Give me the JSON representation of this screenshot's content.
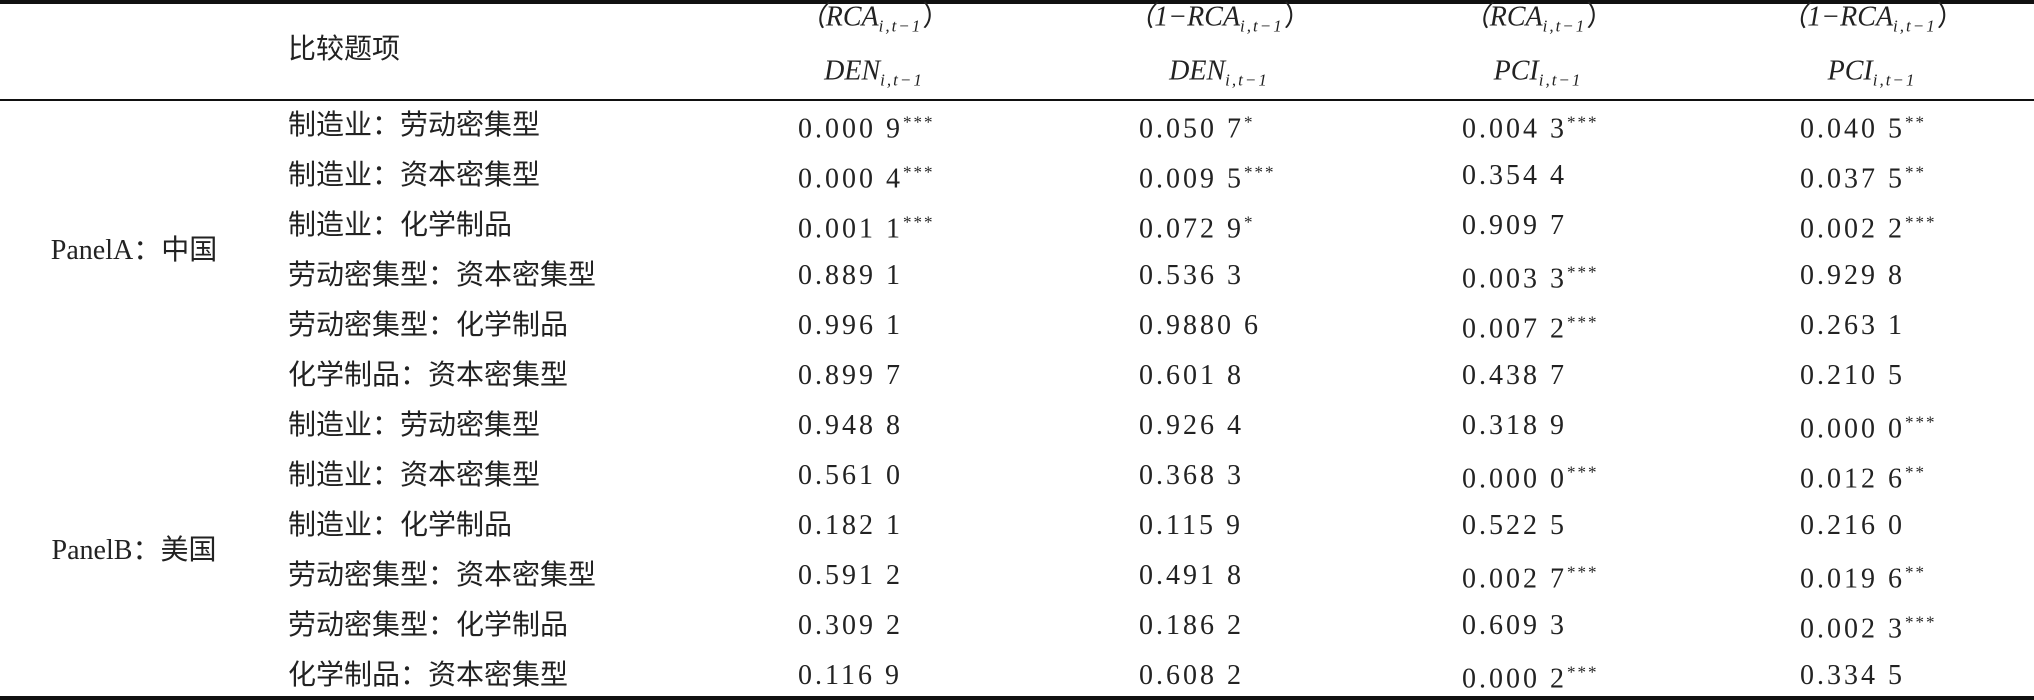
{
  "header": {
    "item": "比较题项",
    "columns": [
      {
        "top": "（RCA",
        "top_sub": "i,t−1",
        "top_close": "）",
        "bottom": "DEN",
        "bottom_sub": "i,t−1"
      },
      {
        "top": "（1−RCA",
        "top_sub": "i,t−1",
        "top_close": "）",
        "bottom": "DEN",
        "bottom_sub": "i,t−1"
      },
      {
        "top": "（RCA",
        "top_sub": "i,t−1",
        "top_close": "）",
        "bottom": "PCI",
        "bottom_sub": "i,t−1"
      },
      {
        "top": "（1−RCA",
        "top_sub": "i,t−1",
        "top_close": "）",
        "bottom": "PCI",
        "bottom_sub": "i,t−1"
      }
    ]
  },
  "panels": [
    {
      "label": "PanelA：中国",
      "rows": [
        {
          "item": "制造业：劳动密集型",
          "cells": [
            {
              "value": "0.000 9",
              "stars": "***"
            },
            {
              "value": "0.050 7",
              "stars": "*"
            },
            {
              "value": "0.004 3",
              "stars": "***"
            },
            {
              "value": "0.040 5",
              "stars": "**"
            }
          ]
        },
        {
          "item": "制造业：资本密集型",
          "cells": [
            {
              "value": "0.000 4",
              "stars": "***"
            },
            {
              "value": "0.009 5",
              "stars": "***"
            },
            {
              "value": "0.354 4"
            },
            {
              "value": "0.037 5",
              "stars": "**"
            }
          ]
        },
        {
          "item": "制造业：化学制品",
          "cells": [
            {
              "value": "0.001 1",
              "stars": "***"
            },
            {
              "value": "0.072 9",
              "stars": "*"
            },
            {
              "value": "0.909 7"
            },
            {
              "value": "0.002 2",
              "stars": "***"
            }
          ]
        },
        {
          "item": "劳动密集型：资本密集型",
          "cells": [
            {
              "value": "0.889 1"
            },
            {
              "value": "0.536 3"
            },
            {
              "value": "0.003 3",
              "stars": "***"
            },
            {
              "value": "0.929 8"
            }
          ]
        },
        {
          "item": "劳动密集型：化学制品",
          "cells": [
            {
              "value": "0.996 1"
            },
            {
              "value": "0.9880 6"
            },
            {
              "value": "0.007 2",
              "stars": "***"
            },
            {
              "value": "0.263 1"
            }
          ]
        },
        {
          "item": "化学制品：资本密集型",
          "cells": [
            {
              "value": "0.899 7"
            },
            {
              "value": "0.601 8"
            },
            {
              "value": "0.438 7"
            },
            {
              "value": "0.210 5"
            }
          ]
        }
      ]
    },
    {
      "label": "PanelB：美国",
      "rows": [
        {
          "item": "制造业：劳动密集型",
          "cells": [
            {
              "value": "0.948 8"
            },
            {
              "value": "0.926 4"
            },
            {
              "value": "0.318 9"
            },
            {
              "value": "0.000 0",
              "stars": "***"
            }
          ]
        },
        {
          "item": "制造业：资本密集型",
          "cells": [
            {
              "value": "0.561 0"
            },
            {
              "value": "0.368 3"
            },
            {
              "value": "0.000 0",
              "stars": "***"
            },
            {
              "value": "0.012 6",
              "stars": "**"
            }
          ]
        },
        {
          "item": "制造业：化学制品",
          "cells": [
            {
              "value": "0.182 1"
            },
            {
              "value": "0.115 9"
            },
            {
              "value": "0.522 5"
            },
            {
              "value": "0.216 0"
            }
          ]
        },
        {
          "item": "劳动密集型：资本密集型",
          "cells": [
            {
              "value": "0.591 2"
            },
            {
              "value": "0.491 8"
            },
            {
              "value": "0.002 7",
              "stars": "***"
            },
            {
              "value": "0.019 6",
              "stars": "**"
            }
          ]
        },
        {
          "item": "劳动密集型：化学制品",
          "cells": [
            {
              "value": "0.309 2"
            },
            {
              "value": "0.186 2"
            },
            {
              "value": "0.609 3"
            },
            {
              "value": "0.002 3",
              "stars": "***"
            }
          ]
        },
        {
          "item": "化学制品：资本密集型",
          "cells": [
            {
              "value": "0.116 9"
            },
            {
              "value": "0.608 2"
            },
            {
              "value": "0.000 2",
              "stars": "***"
            },
            {
              "value": "0.334 5"
            }
          ]
        }
      ]
    }
  ]
}
